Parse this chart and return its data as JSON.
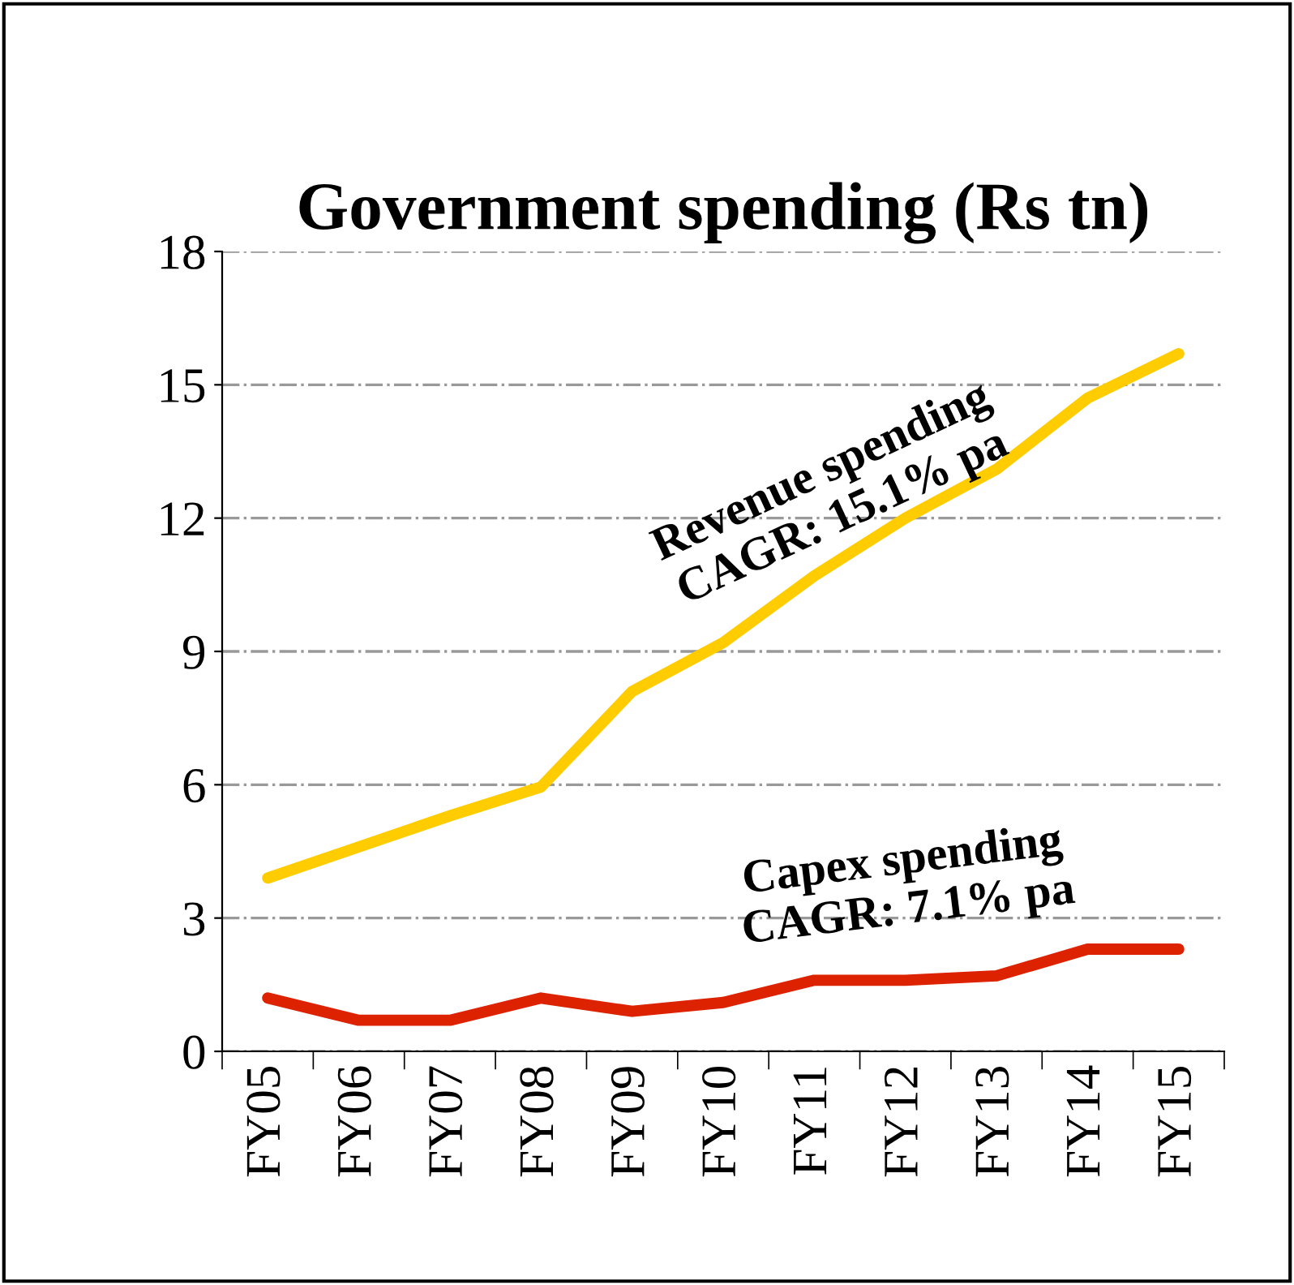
{
  "chart_data": {
    "type": "line",
    "title": "Government spending (Rs tn)",
    "categories": [
      "FY05",
      "FY06",
      "FY07",
      "FY08",
      "FY09",
      "FY10",
      "FY11",
      "FY12",
      "FY13",
      "FY14",
      "FY15"
    ],
    "series": [
      {
        "color": "#ffcc00",
        "values": [
          3.9,
          4.6,
          5.3,
          5.95,
          8.1,
          9.2,
          10.7,
          12.0,
          13.1,
          14.7,
          15.7
        ]
      },
      {
        "color": "#dd2200",
        "values": [
          1.2,
          0.7,
          0.7,
          1.2,
          0.9,
          1.1,
          1.6,
          1.6,
          1.7,
          2.3,
          2.3
        ]
      }
    ],
    "annotations": [
      "Revenue spending\nCAGR: 15.1% pa",
      "Capex spending\nCAGR: 7.1% pa"
    ],
    "ylim": [
      0,
      18
    ],
    "yticks": [
      0,
      3,
      6,
      9,
      12,
      15,
      18
    ],
    "grid": "y",
    "legend": false,
    "marker": "none",
    "line_style": "solid"
  }
}
